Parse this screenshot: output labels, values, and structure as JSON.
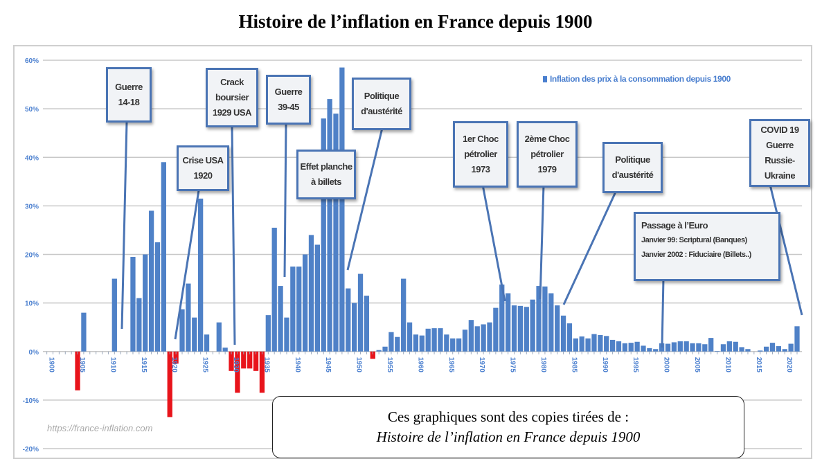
{
  "title": "Histoire de l’inflation en France depuis 1900",
  "chart_data": {
    "type": "bar",
    "title": "Histoire de l’inflation en France depuis 1900",
    "xlabel": "",
    "ylabel": "",
    "ylim": [
      -20,
      60
    ],
    "y_ticks": [
      "60%",
      "50%",
      "40%",
      "30%",
      "20%",
      "10%",
      "0%",
      "-10%",
      "-20%"
    ],
    "x_ticks": [
      "1900",
      "1905",
      "1910",
      "1915",
      "1920",
      "1925",
      "1930",
      "1935",
      "1940",
      "1945",
      "1950",
      "1955",
      "1960",
      "1965",
      "1970",
      "1975",
      "1980",
      "1985",
      "1990",
      "1995",
      "2000",
      "2005",
      "2010",
      "2015",
      "2020"
    ],
    "grid": true,
    "legend": {
      "placement": "top-right",
      "label": "Inflation des prix à la consommation depuis 1900"
    },
    "colors": {
      "positive": "#4f81c7",
      "negative": "#e8141b",
      "grid": "#c8c8c8",
      "tick": "#4a7fcf"
    },
    "start_year": 1900,
    "values": [
      0,
      0,
      0,
      0,
      0,
      -8,
      8,
      0,
      0,
      0,
      0,
      15,
      0,
      0,
      19.5,
      11,
      20,
      29,
      22.5,
      39,
      -13.5,
      -2.5,
      8.7,
      14,
      7,
      31.5,
      3.5,
      0,
      6,
      0.8,
      -4,
      -8.5,
      -3.5,
      -3.5,
      -4,
      -8.5,
      7.5,
      25.5,
      13.5,
      7,
      17.5,
      17.5,
      20,
      24,
      22,
      48,
      52,
      49,
      58.5,
      13,
      10,
      16,
      11.5,
      -1.5,
      0.3,
      1,
      4,
      3,
      15,
      6,
      3.5,
      3.3,
      4.7,
      4.8,
      4.8,
      3.5,
      2.7,
      2.7,
      4.5,
      6.5,
      5.2,
      5.6,
      6,
      9,
      13.8,
      12,
      9.5,
      9.4,
      9.2,
      10.7,
      13.5,
      13.4,
      12,
      9.5,
      7.4,
      5.8,
      2.7,
      3.1,
      2.7,
      3.6,
      3.4,
      3.2,
      2.4,
      2.1,
      1.7,
      1.8,
      2,
      1.2,
      0.7,
      0.5,
      1.7,
      1.6,
      1.9,
      2.1,
      2.1,
      1.7,
      1.7,
      1.5,
      2.8,
      0.1,
      1.5,
      2.1,
      2,
      0.9,
      0.5,
      0,
      0.2,
      1,
      1.8,
      1.1,
      0.5,
      1.6,
      5.2
    ],
    "annotations": [
      {
        "lines": [
          "Guerre",
          "14-18"
        ]
      },
      {
        "lines": [
          "Crise USA",
          "1920"
        ]
      },
      {
        "lines": [
          "Crack",
          "boursier",
          "1929 USA"
        ]
      },
      {
        "lines": [
          "Guerre",
          "39-45"
        ]
      },
      {
        "lines": [
          "Effet planche",
          "à billets"
        ]
      },
      {
        "lines": [
          "Politique",
          "d'austérité"
        ]
      },
      {
        "lines": [
          "1er Choc",
          "pétrolier",
          "1973"
        ]
      },
      {
        "lines": [
          "2ème Choc",
          "pétrolier",
          "1979"
        ]
      },
      {
        "lines": [
          "Politique",
          "d'austérité"
        ]
      },
      {
        "lines": [
          "Passage à l’Euro",
          "Janvier 99: Scriptural (Banques)",
          "Janvier 2002 : Fiduciaire (Billets..)"
        ]
      },
      {
        "lines": [
          "COVID 19",
          "Guerre Russie-",
          "Ukraine"
        ]
      }
    ]
  },
  "watermark": "https://france-inflation.com",
  "note": {
    "line1": "Ces graphiques sont des copies tirées de :",
    "line2": "Histoire de l’inflation en France depuis 1900"
  }
}
